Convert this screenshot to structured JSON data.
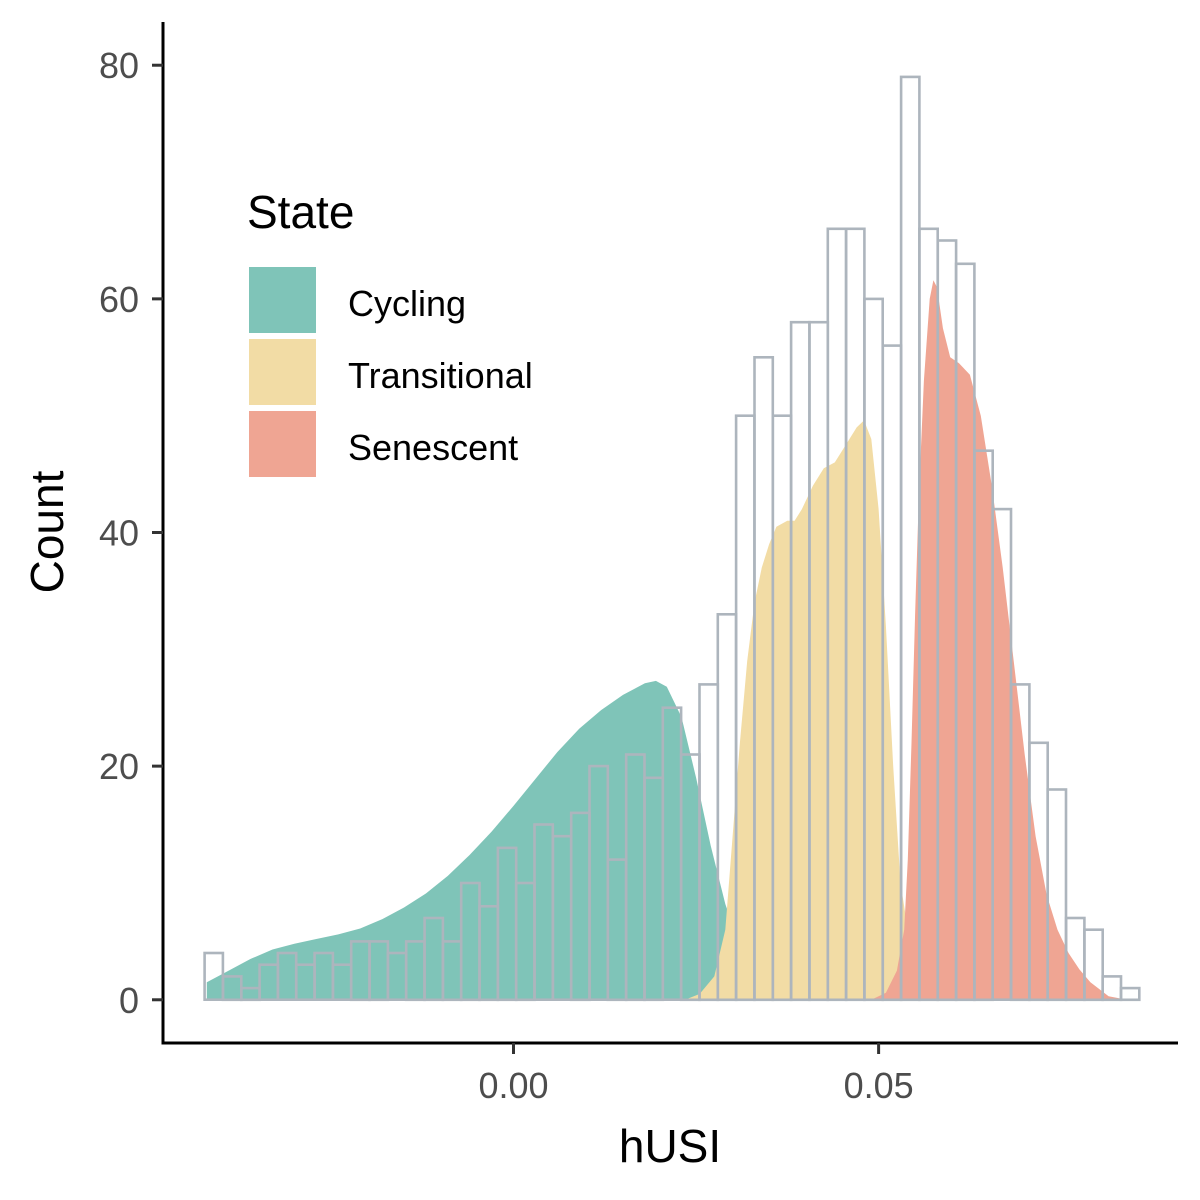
{
  "chart_data": {
    "type": "histogram_with_density",
    "xlabel": "hUSI",
    "ylabel": "Count",
    "xlim": [
      -0.048,
      0.091
    ],
    "ylim": [
      -3.7,
      83.7
    ],
    "x_ticks": [
      {
        "value": 0.0,
        "label": "0.00"
      },
      {
        "value": 0.05,
        "label": "0.05"
      }
    ],
    "y_ticks": [
      {
        "value": 0,
        "label": "0"
      },
      {
        "value": 20,
        "label": "20"
      },
      {
        "value": 40,
        "label": "40"
      },
      {
        "value": 60,
        "label": "60"
      },
      {
        "value": 80,
        "label": "80"
      }
    ],
    "grid": false,
    "histogram": {
      "bin_start": -0.0423,
      "bin_width": 0.00251,
      "counts": [
        4,
        2,
        1,
        3,
        4,
        3,
        4,
        3,
        5,
        5,
        4,
        5,
        7,
        5,
        10,
        8,
        13,
        10,
        15,
        14,
        16,
        20,
        12,
        21,
        19,
        25,
        21,
        27,
        33,
        50,
        55,
        50,
        58,
        58,
        66,
        66,
        60,
        56,
        79,
        66,
        65,
        63,
        47,
        42,
        27,
        22,
        18,
        7,
        6,
        2,
        1
      ],
      "outline_color": "#adb5bd"
    },
    "legend": {
      "title": "State",
      "position": "top-left"
    },
    "series": [
      {
        "name": "Cycling",
        "color": "#7fc4b8",
        "points": [
          [
            -0.042,
            1.5
          ],
          [
            -0.039,
            2.5
          ],
          [
            -0.036,
            3.5
          ],
          [
            -0.033,
            4.3
          ],
          [
            -0.03,
            4.8
          ],
          [
            -0.027,
            5.2
          ],
          [
            -0.024,
            5.6
          ],
          [
            -0.021,
            6.1
          ],
          [
            -0.018,
            6.9
          ],
          [
            -0.015,
            7.9
          ],
          [
            -0.012,
            9.1
          ],
          [
            -0.009,
            10.6
          ],
          [
            -0.006,
            12.4
          ],
          [
            -0.003,
            14.4
          ],
          [
            0.0,
            16.6
          ],
          [
            0.003,
            18.9
          ],
          [
            0.006,
            21.2
          ],
          [
            0.009,
            23.2
          ],
          [
            0.012,
            24.8
          ],
          [
            0.015,
            26.1
          ],
          [
            0.018,
            27.1
          ],
          [
            0.0195,
            27.3
          ],
          [
            0.021,
            26.8
          ],
          [
            0.023,
            24.2
          ],
          [
            0.025,
            19.0
          ],
          [
            0.027,
            13.2
          ],
          [
            0.029,
            8.2
          ],
          [
            0.031,
            4.6
          ],
          [
            0.033,
            2.3
          ],
          [
            0.035,
            1.1
          ],
          [
            0.037,
            0.5
          ],
          [
            0.039,
            0.2
          ],
          [
            0.042,
            0.05
          ],
          [
            0.046,
            0.0
          ]
        ]
      },
      {
        "name": "Transitional",
        "color": "#f2dca5",
        "points": [
          [
            0.0235,
            0.0
          ],
          [
            0.0255,
            0.5
          ],
          [
            0.0275,
            2.0
          ],
          [
            0.029,
            6.0
          ],
          [
            0.03,
            14.0
          ],
          [
            0.031,
            22.0
          ],
          [
            0.032,
            29.0
          ],
          [
            0.033,
            34.0
          ],
          [
            0.034,
            37.0
          ],
          [
            0.035,
            39.0
          ],
          [
            0.036,
            40.5
          ],
          [
            0.0375,
            41.0
          ],
          [
            0.0385,
            41.0
          ],
          [
            0.0395,
            42.0
          ],
          [
            0.041,
            44.0
          ],
          [
            0.0425,
            45.5
          ],
          [
            0.044,
            46.0
          ],
          [
            0.0455,
            47.5
          ],
          [
            0.047,
            49.0
          ],
          [
            0.048,
            49.6
          ],
          [
            0.049,
            48.0
          ],
          [
            0.05,
            42.0
          ],
          [
            0.051,
            32.0
          ],
          [
            0.052,
            20.0
          ],
          [
            0.053,
            10.0
          ],
          [
            0.0545,
            4.0
          ],
          [
            0.056,
            1.2
          ],
          [
            0.058,
            0.2
          ],
          [
            0.06,
            0.0
          ]
        ]
      },
      {
        "name": "Senescent",
        "color": "#efa593",
        "points": [
          [
            0.049,
            0.0
          ],
          [
            0.051,
            0.6
          ],
          [
            0.0525,
            2.5
          ],
          [
            0.0535,
            6.0
          ],
          [
            0.054,
            12.0
          ],
          [
            0.0545,
            22.0
          ],
          [
            0.055,
            33.0
          ],
          [
            0.0555,
            43.0
          ],
          [
            0.0562,
            53.0
          ],
          [
            0.057,
            60.0
          ],
          [
            0.0575,
            61.6
          ],
          [
            0.058,
            61.0
          ],
          [
            0.0588,
            57.5
          ],
          [
            0.0598,
            55.0
          ],
          [
            0.061,
            54.5
          ],
          [
            0.0625,
            53.5
          ],
          [
            0.064,
            50.0
          ],
          [
            0.0655,
            44.0
          ],
          [
            0.067,
            37.0
          ],
          [
            0.0685,
            29.0
          ],
          [
            0.07,
            21.0
          ],
          [
            0.0715,
            14.0
          ],
          [
            0.073,
            9.0
          ],
          [
            0.0745,
            6.0
          ],
          [
            0.076,
            4.0
          ],
          [
            0.0775,
            2.6
          ],
          [
            0.079,
            1.5
          ],
          [
            0.0815,
            0.3
          ],
          [
            0.084,
            0.0
          ]
        ]
      }
    ]
  }
}
